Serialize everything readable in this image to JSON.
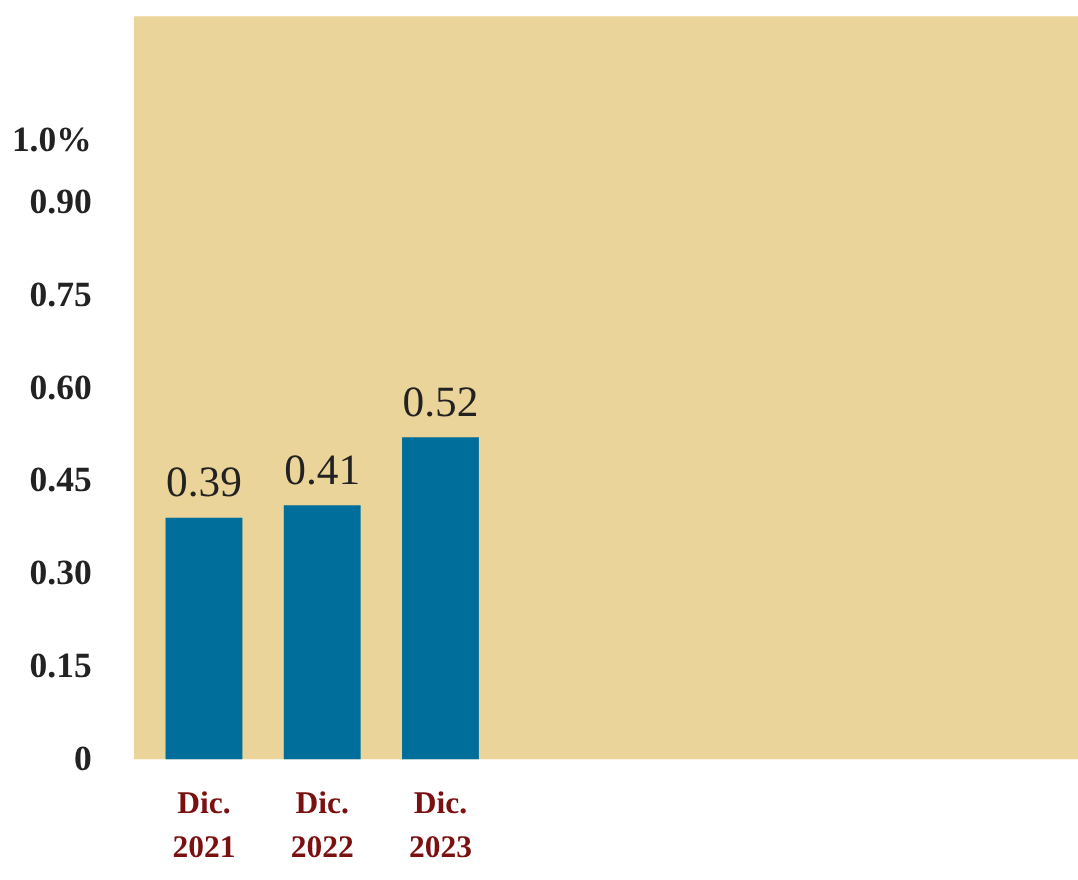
{
  "chart_data": {
    "type": "bar",
    "categories": [
      "Dic.\n2021",
      "Dic.\n2022",
      "Dic.\n2023"
    ],
    "values": [
      0.39,
      0.41,
      0.52
    ],
    "color": "#006e9a",
    "data_labels": true,
    "grid": false,
    "ylim": [
      0,
      1.2
    ],
    "yticks": [
      0,
      0.15,
      {
        "value": 0.3,
        "label": "0.30"
      },
      0.45,
      {
        "value": 0.6,
        "label": "0.60"
      },
      0.75,
      {
        "value": 0.9,
        "label": "0.90"
      },
      {
        "value": 1.0,
        "label": "1.0%"
      }
    ]
  }
}
